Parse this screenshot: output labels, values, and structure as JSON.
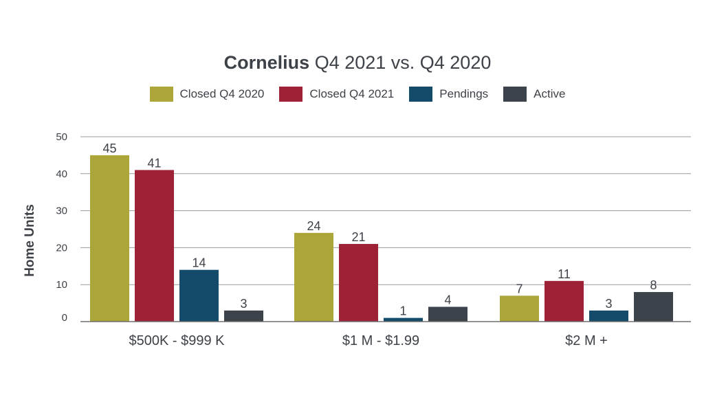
{
  "colors": {
    "closed_2020": "#aca63a",
    "closed_2021": "#9d2235",
    "pendings": "#154b6a",
    "active": "#3d434b",
    "grid": "#9a9a9a",
    "text": "#3d4148"
  },
  "chart_data": {
    "type": "bar",
    "title_bold": "Cornelius",
    "title_rest": "Q4 2021 vs. Q4 2020",
    "xlabel": "",
    "ylabel": "Home Units",
    "ylim": [
      0,
      50
    ],
    "yticks": [
      0,
      10,
      20,
      30,
      40,
      50
    ],
    "grid": true,
    "legend_placement": "top-center",
    "categories": [
      "$500K - $999 K",
      "$1 M - $1.99",
      "$2 M +"
    ],
    "series": [
      {
        "name": "Closed Q4 2020",
        "values": [
          45,
          24,
          7
        ]
      },
      {
        "name": "Closed Q4 2021",
        "values": [
          41,
          21,
          11
        ]
      },
      {
        "name": "Pendings",
        "values": [
          14,
          1,
          3
        ]
      },
      {
        "name": "Active",
        "values": [
          3,
          4,
          8
        ]
      }
    ]
  }
}
